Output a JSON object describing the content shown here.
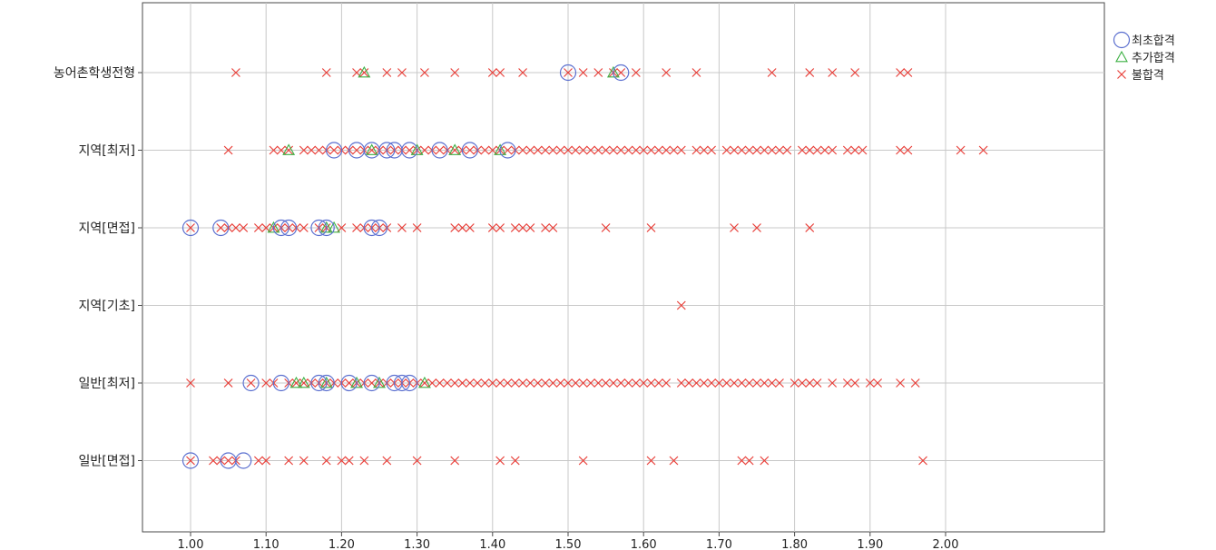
{
  "chart_data": {
    "type": "scatter",
    "title": "",
    "xlabel": "",
    "ylabel": "",
    "xlim": [
      0.95,
      2.05
    ],
    "x_ticks": [
      "1.00",
      "1.10",
      "1.20",
      "1.30",
      "1.40",
      "1.50",
      "1.60",
      "1.70",
      "1.80",
      "1.90",
      "2.00"
    ],
    "categories": [
      "농어촌학생전형",
      "지역[최저]",
      "지역[면접]",
      "지역[기초]",
      "일반[최저]",
      "일반[면접]"
    ],
    "grid": true,
    "legend_position": "top-right",
    "series": [
      {
        "name": "최초합격",
        "marker": "circle",
        "color": "#5b6fcf",
        "points": [
          {
            "category": "농어촌학생전형",
            "x": [
              1.5,
              1.57
            ]
          },
          {
            "category": "지역[최저]",
            "x": [
              1.19,
              1.22,
              1.24,
              1.26,
              1.27,
              1.29,
              1.33,
              1.37,
              1.42
            ]
          },
          {
            "category": "지역[면접]",
            "x": [
              1.0,
              1.04,
              1.12,
              1.13,
              1.17,
              1.18,
              1.24,
              1.25
            ]
          },
          {
            "category": "지역[기초]",
            "x": []
          },
          {
            "category": "일반[최저]",
            "x": [
              1.08,
              1.12,
              1.17,
              1.18,
              1.21,
              1.24,
              1.27,
              1.28,
              1.29
            ]
          },
          {
            "category": "일반[면접]",
            "x": [
              1.0,
              1.05,
              1.07
            ]
          }
        ]
      },
      {
        "name": "추가합격",
        "marker": "triangle",
        "color": "#3cb043",
        "points": [
          {
            "category": "농어촌학생전형",
            "x": [
              1.23,
              1.56
            ]
          },
          {
            "category": "지역[최저]",
            "x": [
              1.13,
              1.24,
              1.3,
              1.35,
              1.41
            ]
          },
          {
            "category": "지역[면접]",
            "x": [
              1.11,
              1.18,
              1.19
            ]
          },
          {
            "category": "지역[기초]",
            "x": []
          },
          {
            "category": "일반[최저]",
            "x": [
              1.14,
              1.15,
              1.18,
              1.22,
              1.25,
              1.31
            ]
          },
          {
            "category": "일반[면접]",
            "x": []
          }
        ]
      },
      {
        "name": "불합격",
        "marker": "cross",
        "color": "#e8403a",
        "points": [
          {
            "category": "농어촌학생전형",
            "x": [
              1.06,
              1.18,
              1.22,
              1.23,
              1.26,
              1.28,
              1.31,
              1.35,
              1.4,
              1.41,
              1.44,
              1.5,
              1.52,
              1.54,
              1.56,
              1.57,
              1.59,
              1.63,
              1.67,
              1.77,
              1.82,
              1.85,
              1.88,
              1.94,
              1.95
            ]
          },
          {
            "category": "지역[최저]",
            "x": [
              1.05,
              1.11,
              1.12,
              1.13,
              1.15,
              1.16,
              1.17,
              1.18,
              1.19,
              1.2,
              1.21,
              1.22,
              1.23,
              1.24,
              1.25,
              1.26,
              1.27,
              1.28,
              1.29,
              1.3,
              1.31,
              1.32,
              1.33,
              1.34,
              1.35,
              1.36,
              1.37,
              1.38,
              1.39,
              1.4,
              1.41,
              1.42,
              1.43,
              1.44,
              1.45,
              1.46,
              1.47,
              1.48,
              1.49,
              1.5,
              1.51,
              1.52,
              1.53,
              1.54,
              1.55,
              1.56,
              1.57,
              1.58,
              1.59,
              1.6,
              1.61,
              1.62,
              1.63,
              1.64,
              1.65,
              1.67,
              1.68,
              1.69,
              1.71,
              1.72,
              1.73,
              1.74,
              1.75,
              1.76,
              1.77,
              1.78,
              1.79,
              1.81,
              1.82,
              1.83,
              1.84,
              1.85,
              1.87,
              1.88,
              1.89,
              1.94,
              1.95,
              2.02,
              2.05
            ]
          },
          {
            "category": "지역[면접]",
            "x": [
              1.0,
              1.04,
              1.05,
              1.06,
              1.07,
              1.09,
              1.1,
              1.11,
              1.12,
              1.13,
              1.14,
              1.15,
              1.17,
              1.18,
              1.2,
              1.22,
              1.23,
              1.24,
              1.25,
              1.26,
              1.28,
              1.3,
              1.35,
              1.36,
              1.37,
              1.4,
              1.41,
              1.43,
              1.44,
              1.45,
              1.47,
              1.48,
              1.55,
              1.61,
              1.72,
              1.75,
              1.82
            ]
          },
          {
            "category": "지역[기초]",
            "x": [
              1.65
            ]
          },
          {
            "category": "일반[최저]",
            "x": [
              1.0,
              1.05,
              1.08,
              1.1,
              1.11,
              1.13,
              1.14,
              1.15,
              1.16,
              1.17,
              1.18,
              1.19,
              1.2,
              1.21,
              1.22,
              1.23,
              1.24,
              1.25,
              1.26,
              1.27,
              1.28,
              1.29,
              1.3,
              1.31,
              1.32,
              1.33,
              1.34,
              1.35,
              1.36,
              1.37,
              1.38,
              1.39,
              1.4,
              1.41,
              1.42,
              1.43,
              1.44,
              1.45,
              1.46,
              1.47,
              1.48,
              1.49,
              1.5,
              1.51,
              1.52,
              1.53,
              1.54,
              1.55,
              1.56,
              1.57,
              1.58,
              1.59,
              1.6,
              1.61,
              1.62,
              1.63,
              1.65,
              1.66,
              1.67,
              1.68,
              1.69,
              1.7,
              1.71,
              1.72,
              1.73,
              1.74,
              1.75,
              1.76,
              1.77,
              1.78,
              1.8,
              1.81,
              1.82,
              1.83,
              1.85,
              1.87,
              1.88,
              1.9,
              1.91,
              1.94,
              1.96
            ]
          },
          {
            "category": "일반[면접]",
            "x": [
              1.0,
              1.03,
              1.04,
              1.05,
              1.06,
              1.09,
              1.1,
              1.13,
              1.15,
              1.18,
              1.2,
              1.21,
              1.23,
              1.26,
              1.3,
              1.35,
              1.41,
              1.43,
              1.52,
              1.61,
              1.64,
              1.73,
              1.74,
              1.76,
              1.97
            ]
          }
        ]
      }
    ]
  }
}
